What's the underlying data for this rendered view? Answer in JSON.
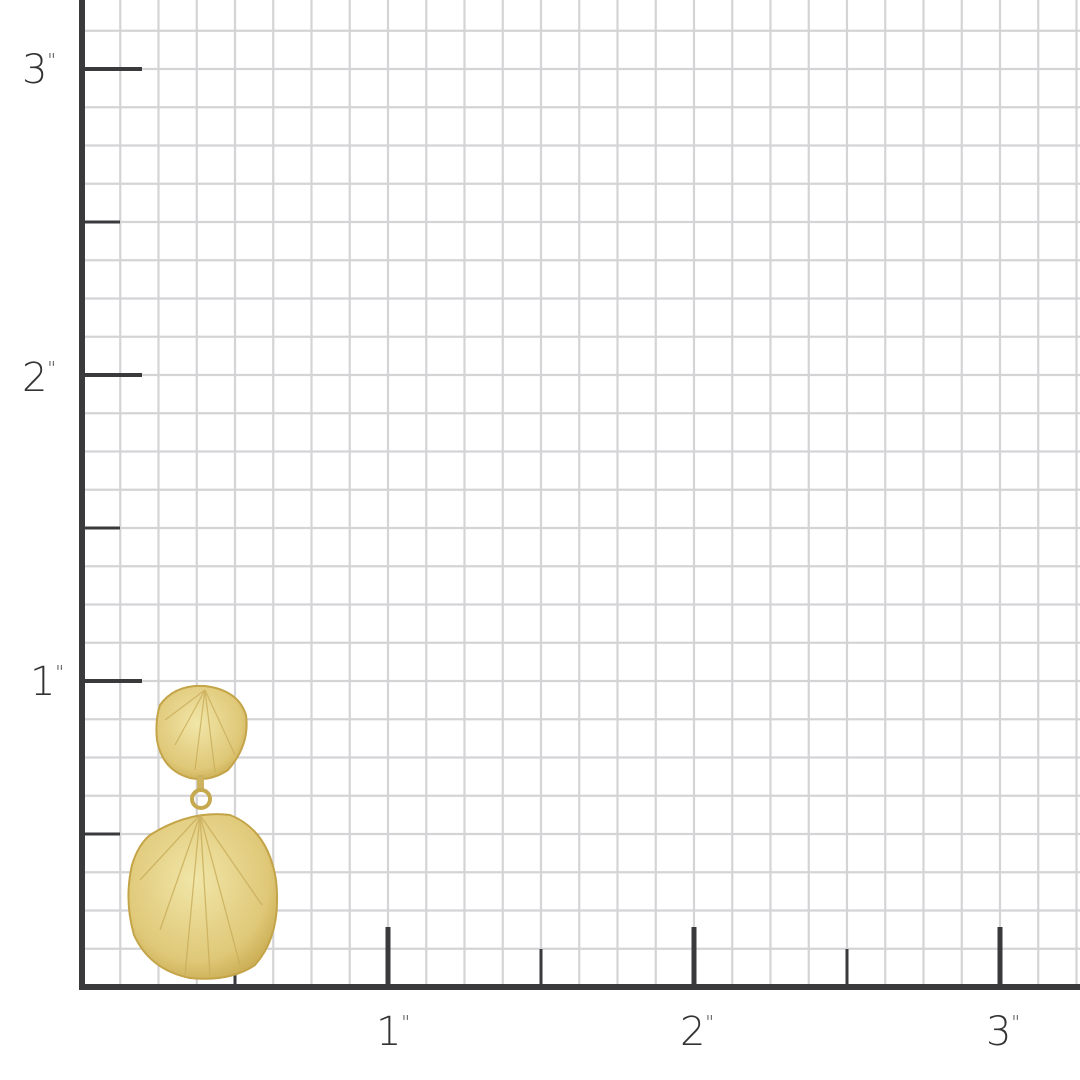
{
  "ruler": {
    "unit_mark": "\"",
    "x_labels": [
      "1",
      "2",
      "3"
    ],
    "y_labels": [
      "1",
      "2",
      "3"
    ],
    "grid_subdivisions_per_inch": 8,
    "colors": {
      "axis": "#3a3a3c",
      "grid": "#d4d4d6",
      "background": "#ffffff"
    }
  },
  "product": {
    "name": "earring",
    "colors": {
      "gold_light": "#efe2a0",
      "gold_mid": "#dcc46e",
      "gold_dark": "#b8983c"
    }
  }
}
